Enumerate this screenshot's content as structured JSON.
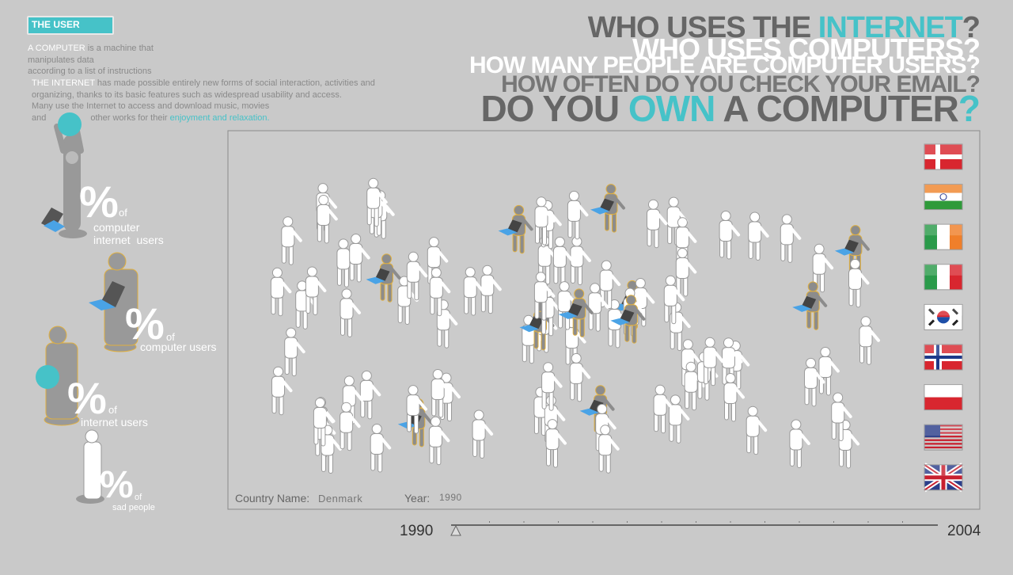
{
  "sidebar": {
    "badge": "THE USER",
    "computer_definition": {
      "term": "A COMPUTER",
      "lines": [
        "is a machine that",
        "manipulates data",
        "according to a list of instructions"
      ]
    },
    "internet_definition": {
      "term": "THE INTERNET",
      "lines": [
        "has made possible entirely new forms of social interaction, activities and",
        "organizing, thanks to its basic features such as widespread usability and access.",
        "Many use the Internet to access and download music, movies",
        "and",
        "other works for their"
      ],
      "highlight": "enjoyment and relaxation."
    },
    "legend": [
      {
        "symbol": "%",
        "of": "of",
        "label": [
          "computer",
          "internet  users"
        ]
      },
      {
        "symbol": "%",
        "of": "of",
        "label": [
          "computer users"
        ]
      },
      {
        "symbol": "%",
        "of": "of",
        "label": [
          "internet users"
        ]
      },
      {
        "symbol": "%",
        "of": "of",
        "label": [
          "sad people"
        ]
      }
    ]
  },
  "headlines": [
    [
      "WHO USES THE ",
      "INTERNET",
      "?"
    ],
    [
      "WHO USES COMPUTERS?"
    ],
    [
      "HOW MANY PEOPLE ARE COMPUTER USERS?"
    ],
    [
      "HOW OFTEN DO YOU CHECK YOUR EMAIL?"
    ],
    [
      "DO YOU ",
      "OWN",
      " A COMPUTER",
      "?"
    ]
  ],
  "panel": {
    "country_label": "Country Name:",
    "country": "Denmark",
    "year_label": "Year:",
    "year": "1990"
  },
  "slider": {
    "start": "1990",
    "end": "2004"
  }
}
